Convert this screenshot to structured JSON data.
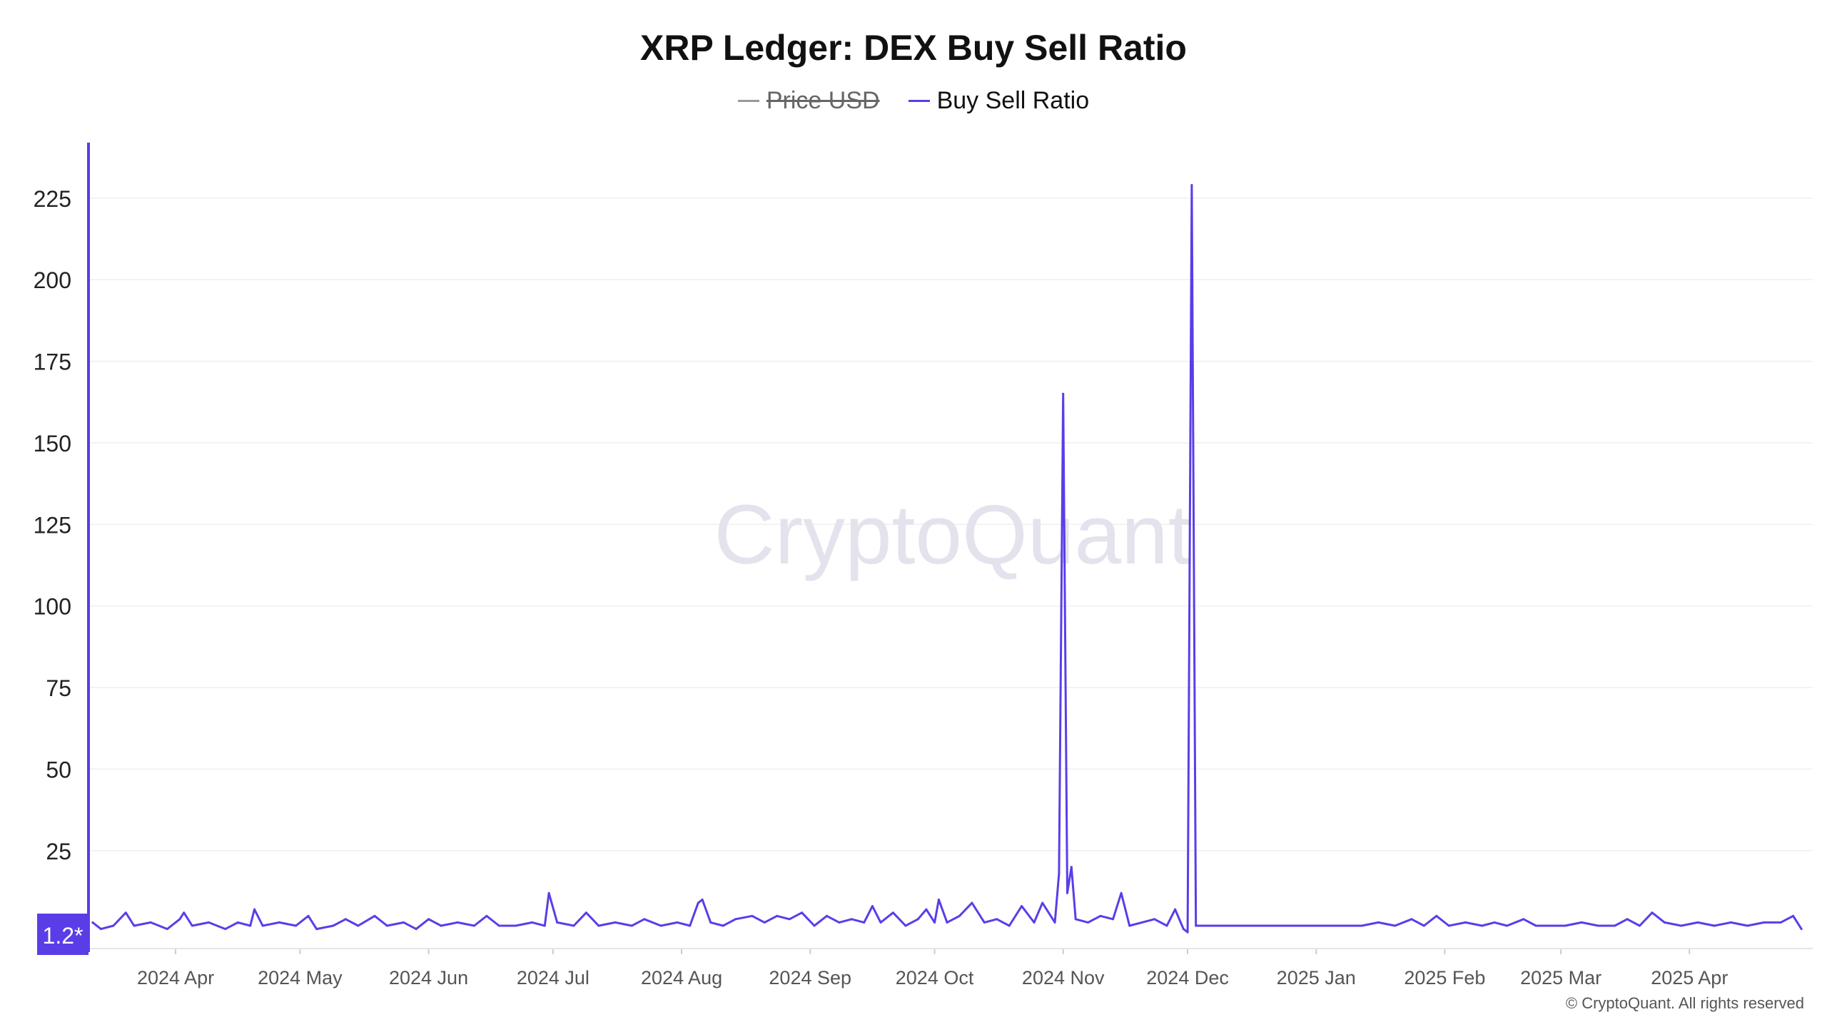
{
  "chart_data": {
    "type": "line",
    "title": "XRP Ledger: DEX Buy Sell Ratio",
    "xlabel": "",
    "ylabel": "",
    "legend_position": "top-center",
    "legend": [
      {
        "name": "Price USD",
        "color": "#999999",
        "enabled": false
      },
      {
        "name": "Buy Sell Ratio",
        "color": "#5b3de8",
        "enabled": true
      }
    ],
    "x_range": [
      "2024-03-11",
      "2025-04-29"
    ],
    "ylim": [
      -5,
      242
    ],
    "y_ticks": [
      25,
      50,
      75,
      100,
      125,
      150,
      175,
      200,
      225
    ],
    "y_tick_labels": [
      "25",
      "50",
      "75",
      "100",
      "125",
      "150",
      "175",
      "200",
      "225"
    ],
    "x_ticks": [
      {
        "date": "2024-04-01",
        "label": "2024 Apr"
      },
      {
        "date": "2024-05-01",
        "label": "2024 May"
      },
      {
        "date": "2024-06-01",
        "label": "2024 Jun"
      },
      {
        "date": "2024-07-01",
        "label": "2024 Jul"
      },
      {
        "date": "2024-08-01",
        "label": "2024 Aug"
      },
      {
        "date": "2024-09-01",
        "label": "2024 Sep"
      },
      {
        "date": "2024-10-01",
        "label": "2024 Oct"
      },
      {
        "date": "2024-11-01",
        "label": "2024 Nov"
      },
      {
        "date": "2024-12-01",
        "label": "2024 Dec"
      },
      {
        "date": "2025-01-01",
        "label": "2025 Jan"
      },
      {
        "date": "2025-02-01",
        "label": "2025 Feb"
      },
      {
        "date": "2025-03-01",
        "label": "2025 Mar"
      },
      {
        "date": "2025-04-01",
        "label": "2025 Apr"
      }
    ],
    "grid": true,
    "current_value_label": "1.2*",
    "series": [
      {
        "name": "Buy Sell Ratio",
        "color": "#5b3de8",
        "points": [
          [
            "2024-03-12",
            3
          ],
          [
            "2024-03-14",
            1
          ],
          [
            "2024-03-17",
            2
          ],
          [
            "2024-03-20",
            6
          ],
          [
            "2024-03-22",
            2
          ],
          [
            "2024-03-26",
            3
          ],
          [
            "2024-03-30",
            1
          ],
          [
            "2024-04-02",
            4
          ],
          [
            "2024-04-03",
            6
          ],
          [
            "2024-04-05",
            2
          ],
          [
            "2024-04-09",
            3
          ],
          [
            "2024-04-13",
            1
          ],
          [
            "2024-04-16",
            3
          ],
          [
            "2024-04-19",
            2
          ],
          [
            "2024-04-20",
            7
          ],
          [
            "2024-04-22",
            2
          ],
          [
            "2024-04-26",
            3
          ],
          [
            "2024-04-30",
            2
          ],
          [
            "2024-05-03",
            5
          ],
          [
            "2024-05-05",
            1
          ],
          [
            "2024-05-09",
            2
          ],
          [
            "2024-05-12",
            4
          ],
          [
            "2024-05-15",
            2
          ],
          [
            "2024-05-19",
            5
          ],
          [
            "2024-05-22",
            2
          ],
          [
            "2024-05-26",
            3
          ],
          [
            "2024-05-29",
            1
          ],
          [
            "2024-06-01",
            4
          ],
          [
            "2024-06-04",
            2
          ],
          [
            "2024-06-08",
            3
          ],
          [
            "2024-06-12",
            2
          ],
          [
            "2024-06-15",
            5
          ],
          [
            "2024-06-18",
            2
          ],
          [
            "2024-06-22",
            2
          ],
          [
            "2024-06-26",
            3
          ],
          [
            "2024-06-29",
            2
          ],
          [
            "2024-06-30",
            12
          ],
          [
            "2024-07-02",
            3
          ],
          [
            "2024-07-06",
            2
          ],
          [
            "2024-07-09",
            6
          ],
          [
            "2024-07-12",
            2
          ],
          [
            "2024-07-16",
            3
          ],
          [
            "2024-07-20",
            2
          ],
          [
            "2024-07-23",
            4
          ],
          [
            "2024-07-27",
            2
          ],
          [
            "2024-07-31",
            3
          ],
          [
            "2024-08-03",
            2
          ],
          [
            "2024-08-05",
            9
          ],
          [
            "2024-08-06",
            10
          ],
          [
            "2024-08-08",
            3
          ],
          [
            "2024-08-11",
            2
          ],
          [
            "2024-08-14",
            4
          ],
          [
            "2024-08-18",
            5
          ],
          [
            "2024-08-21",
            3
          ],
          [
            "2024-08-24",
            5
          ],
          [
            "2024-08-27",
            4
          ],
          [
            "2024-08-30",
            6
          ],
          [
            "2024-09-02",
            2
          ],
          [
            "2024-09-05",
            5
          ],
          [
            "2024-09-08",
            3
          ],
          [
            "2024-09-11",
            4
          ],
          [
            "2024-09-14",
            3
          ],
          [
            "2024-09-16",
            8
          ],
          [
            "2024-09-18",
            3
          ],
          [
            "2024-09-21",
            6
          ],
          [
            "2024-09-24",
            2
          ],
          [
            "2024-09-27",
            4
          ],
          [
            "2024-09-29",
            7
          ],
          [
            "2024-10-01",
            3
          ],
          [
            "2024-10-02",
            10
          ],
          [
            "2024-10-04",
            3
          ],
          [
            "2024-10-07",
            5
          ],
          [
            "2024-10-10",
            9
          ],
          [
            "2024-10-13",
            3
          ],
          [
            "2024-10-16",
            4
          ],
          [
            "2024-10-19",
            2
          ],
          [
            "2024-10-22",
            8
          ],
          [
            "2024-10-25",
            3
          ],
          [
            "2024-10-27",
            9
          ],
          [
            "2024-10-30",
            3
          ],
          [
            "2024-10-31",
            18
          ],
          [
            "2024-11-01",
            165
          ],
          [
            "2024-11-02",
            12
          ],
          [
            "2024-11-03",
            20
          ],
          [
            "2024-11-04",
            4
          ],
          [
            "2024-11-07",
            3
          ],
          [
            "2024-11-10",
            5
          ],
          [
            "2024-11-13",
            4
          ],
          [
            "2024-11-15",
            12
          ],
          [
            "2024-11-17",
            2
          ],
          [
            "2024-11-20",
            3
          ],
          [
            "2024-11-23",
            4
          ],
          [
            "2024-11-26",
            2
          ],
          [
            "2024-11-28",
            7
          ],
          [
            "2024-11-30",
            1
          ],
          [
            "2024-12-01",
            0
          ],
          [
            "2024-12-02",
            229
          ],
          [
            "2024-12-03",
            2
          ],
          [
            "2024-12-06",
            2
          ],
          [
            "2024-12-10",
            2
          ],
          [
            "2024-12-15",
            2
          ],
          [
            "2024-12-20",
            2
          ],
          [
            "2024-12-25",
            2
          ],
          [
            "2024-12-30",
            2
          ],
          [
            "2025-01-04",
            2
          ],
          [
            "2025-01-08",
            2
          ],
          [
            "2025-01-12",
            2
          ],
          [
            "2025-01-16",
            3
          ],
          [
            "2025-01-20",
            2
          ],
          [
            "2025-01-24",
            4
          ],
          [
            "2025-01-27",
            2
          ],
          [
            "2025-01-30",
            5
          ],
          [
            "2025-02-02",
            2
          ],
          [
            "2025-02-06",
            3
          ],
          [
            "2025-02-10",
            2
          ],
          [
            "2025-02-13",
            3
          ],
          [
            "2025-02-16",
            2
          ],
          [
            "2025-02-20",
            4
          ],
          [
            "2025-02-23",
            2
          ],
          [
            "2025-02-27",
            2
          ],
          [
            "2025-03-02",
            2
          ],
          [
            "2025-03-06",
            3
          ],
          [
            "2025-03-10",
            2
          ],
          [
            "2025-03-14",
            2
          ],
          [
            "2025-03-17",
            4
          ],
          [
            "2025-03-20",
            2
          ],
          [
            "2025-03-23",
            6
          ],
          [
            "2025-03-26",
            3
          ],
          [
            "2025-03-30",
            2
          ],
          [
            "2025-04-03",
            3
          ],
          [
            "2025-04-07",
            2
          ],
          [
            "2025-04-11",
            3
          ],
          [
            "2025-04-15",
            2
          ],
          [
            "2025-04-19",
            3
          ],
          [
            "2025-04-23",
            3
          ],
          [
            "2025-04-26",
            5
          ],
          [
            "2025-04-28",
            1
          ]
        ]
      }
    ]
  },
  "watermark": "CryptoQuant",
  "copyright": "© CryptoQuant. All rights reserved"
}
